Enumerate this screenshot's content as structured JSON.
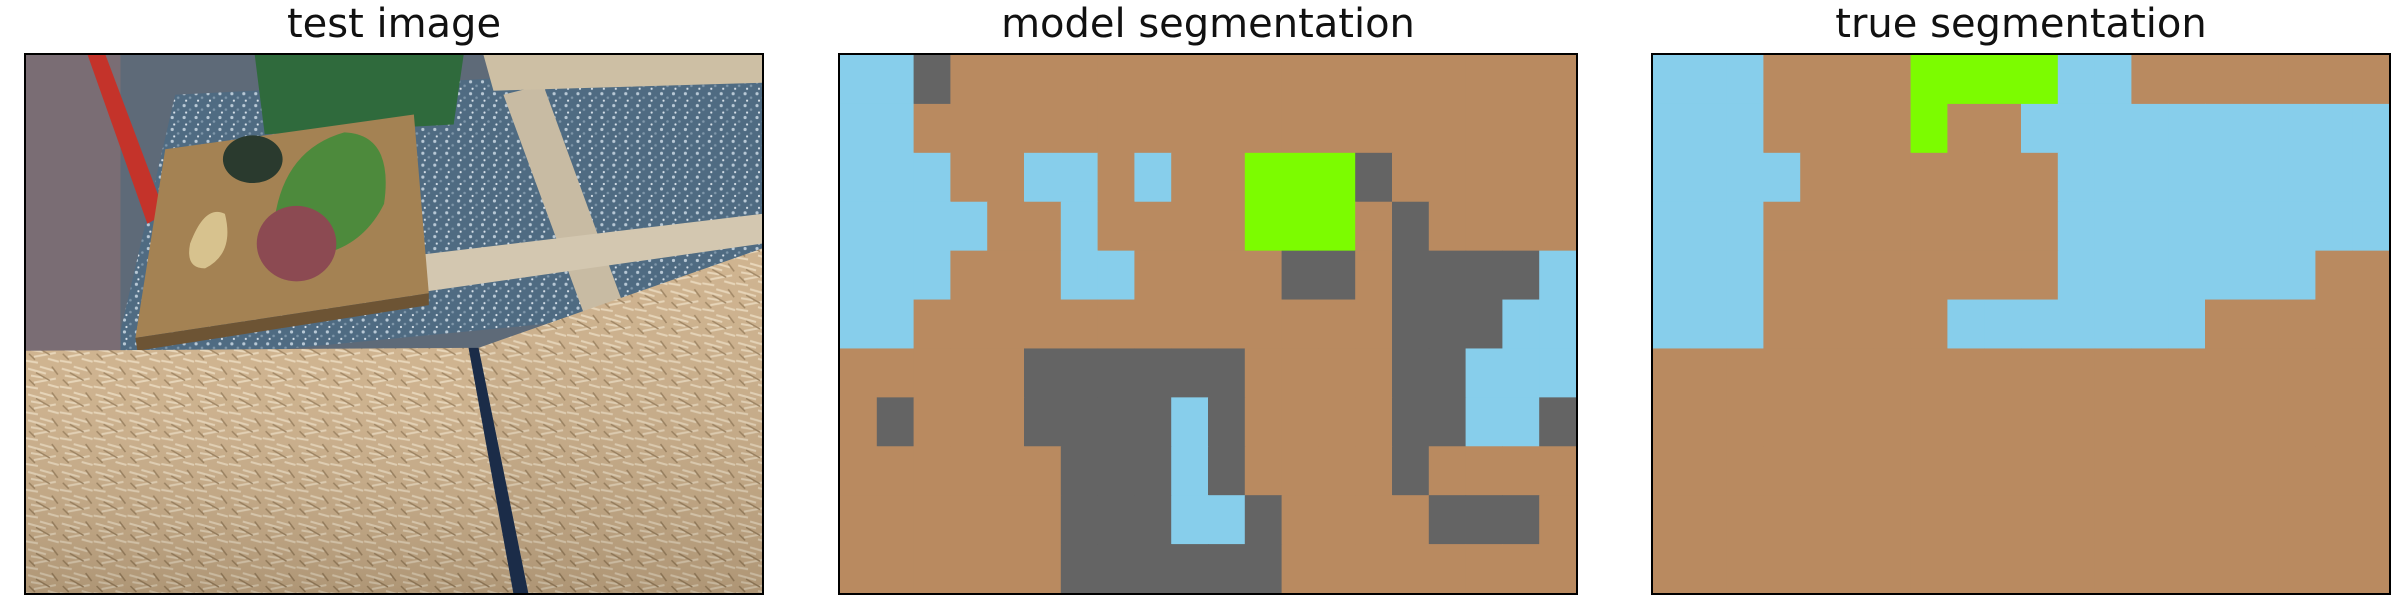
{
  "titles": {
    "test": "test image",
    "model": "model segmentation",
    "true": "true segmentation"
  },
  "legend_colors": {
    "wall": "#B98A60",
    "void": "#87CEEB",
    "hold": "#7CFC00",
    "other": "#646464"
  },
  "model_grid": [
    "VVHWWWWWWWWWWWWWWWWW",
    "VVWWWWWWWWWWWWWWWWWW",
    "VVVWWVVWVWWGGGHWWWWW",
    "VVVVWWVWWWWGGGWHWWWW",
    "VVVWWWVVWWWWHHWHHHHV",
    "VVWWWWWWWWWWWWWHHHVV",
    "WWWWWHHHHHHWWWWHHVVV",
    "WHWWWHHHHVHWWWWHHVVH",
    "WWWWWWHHHVHWWWWHWWWW",
    "WWWWWWHHHVVHWWWWHHHW",
    "WWWWWWHHHHHHWWWWWWWW"
  ],
  "true_grid": [
    "VVVWWWWGGGGVVWWWWWWW",
    "VVVWWWWGWWVVVVVVVVVV",
    "VVVVWWWWWWWVVVVVVVVV",
    "VVVWWWWWWWWVVVVVVVVV",
    "VVVWWWWWWWWVVVVVVVWW",
    "VVVWWWWWVVVVVVVWWWWW",
    "WWWWWWWWWWWWWWWWWWWW",
    "WWWWWWWWWWWWWWWWWWWW",
    "WWWWWWWWWWWWWWWWWWWW",
    "WWWWWWWWWWWWWWWWWWWW",
    "WWWWWWWWWWWWWWWWWWWW"
  ]
}
